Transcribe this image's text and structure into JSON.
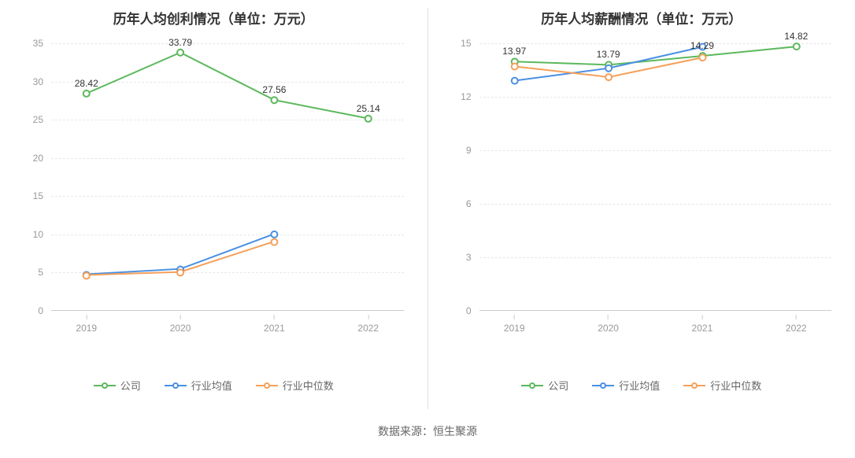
{
  "colors": {
    "company": "#5cb85c",
    "industry_avg": "#4a90e2",
    "industry_median": "#f5a05a",
    "grid": "#e8e8e8",
    "axis": "#cccccc",
    "tick_text": "#999999",
    "title_text": "#333333",
    "label_text": "#333333",
    "background": "#ffffff"
  },
  "typography": {
    "title_fontsize": 17,
    "tick_fontsize": 12,
    "label_fontsize": 12,
    "legend_fontsize": 13
  },
  "left_chart": {
    "type": "line",
    "title": "历年人均创利情况（单位：万元）",
    "x_categories": [
      "2019",
      "2020",
      "2021",
      "2022"
    ],
    "ylim": [
      0,
      35
    ],
    "ytick_step": 5,
    "yticks": [
      0,
      5,
      10,
      15,
      20,
      25,
      30,
      35
    ],
    "series": [
      {
        "name": "公司",
        "color_key": "company",
        "values": [
          28.42,
          33.79,
          27.56,
          25.14
        ],
        "labels": [
          "28.42",
          "33.79",
          "27.56",
          "25.14"
        ],
        "show_labels": true
      },
      {
        "name": "行业均值",
        "color_key": "industry_avg",
        "values": [
          4.7,
          5.4,
          10.0,
          null
        ],
        "show_labels": false
      },
      {
        "name": "行业中位数",
        "color_key": "industry_median",
        "values": [
          4.6,
          5.0,
          9.0,
          null
        ],
        "show_labels": false
      }
    ]
  },
  "right_chart": {
    "type": "line",
    "title": "历年人均薪酬情况（单位：万元）",
    "x_categories": [
      "2019",
      "2020",
      "2021",
      "2022"
    ],
    "ylim": [
      0,
      15
    ],
    "ytick_step": 3,
    "yticks": [
      0,
      3,
      6,
      9,
      12,
      15
    ],
    "series": [
      {
        "name": "公司",
        "color_key": "company",
        "values": [
          13.97,
          13.79,
          14.29,
          14.82
        ],
        "labels": [
          "13.97",
          "13.79",
          "14.29",
          "14.82"
        ],
        "show_labels": true
      },
      {
        "name": "行业均值",
        "color_key": "industry_avg",
        "values": [
          12.9,
          13.6,
          14.8,
          null
        ],
        "show_labels": false
      },
      {
        "name": "行业中位数",
        "color_key": "industry_median",
        "values": [
          13.7,
          13.1,
          14.2,
          null
        ],
        "show_labels": false
      }
    ]
  },
  "legend": {
    "items": [
      {
        "label": "公司",
        "color_key": "company"
      },
      {
        "label": "行业均值",
        "color_key": "industry_avg"
      },
      {
        "label": "行业中位数",
        "color_key": "industry_median"
      }
    ]
  },
  "source_label": "数据来源：恒生聚源"
}
